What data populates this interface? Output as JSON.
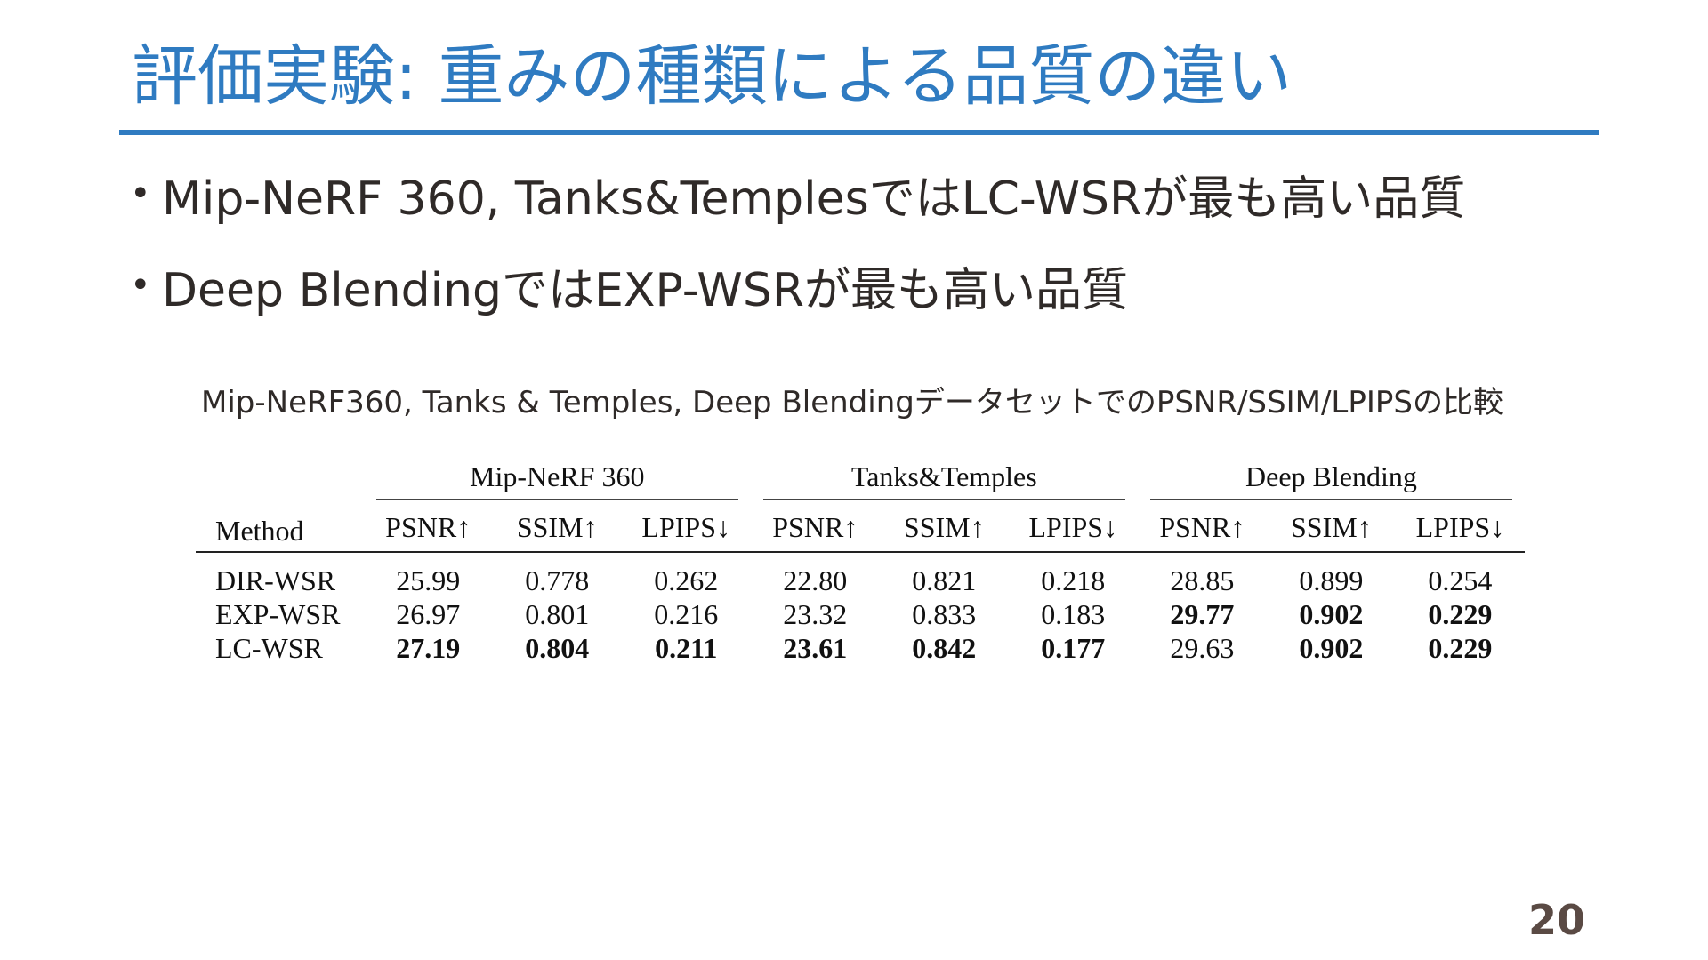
{
  "slide": {
    "title": "評価実験: 重みの種類による品質の違い",
    "page_number": "20"
  },
  "bullets": [
    {
      "marker": "•",
      "text": "Mip-NeRF 360, Tanks&TemplesではLC-WSRが最も高い品質"
    },
    {
      "marker": "•",
      "text": "Deep BlendingではEXP-WSRが最も高い品質"
    }
  ],
  "caption": "Mip-NeRF360, Tanks & Temples, Deep BlendingデータセットでのPSNR/SSIM/LPIPSの比較",
  "table": {
    "method_header": "Method",
    "groups": [
      "Mip-NeRF 360",
      "Tanks&Temples",
      "Deep Blending"
    ],
    "metrics": [
      "PSNR↑",
      "SSIM↑",
      "LPIPS↓",
      "PSNR↑",
      "SSIM↑",
      "LPIPS↓",
      "PSNR↑",
      "SSIM↑",
      "LPIPS↓"
    ],
    "rows": [
      {
        "method": "DIR-WSR",
        "values": [
          "25.99",
          "0.778",
          "0.262",
          "22.80",
          "0.821",
          "0.218",
          "28.85",
          "0.899",
          "0.254"
        ],
        "bold": [
          false,
          false,
          false,
          false,
          false,
          false,
          false,
          false,
          false
        ]
      },
      {
        "method": "EXP-WSR",
        "values": [
          "26.97",
          "0.801",
          "0.216",
          "23.32",
          "0.833",
          "0.183",
          "29.77",
          "0.902",
          "0.229"
        ],
        "bold": [
          false,
          false,
          false,
          false,
          false,
          false,
          true,
          true,
          true
        ]
      },
      {
        "method": "LC-WSR",
        "values": [
          "27.19",
          "0.804",
          "0.211",
          "23.61",
          "0.842",
          "0.177",
          "29.63",
          "0.902",
          "0.229"
        ],
        "bold": [
          true,
          true,
          true,
          true,
          true,
          true,
          false,
          true,
          true
        ]
      }
    ]
  }
}
